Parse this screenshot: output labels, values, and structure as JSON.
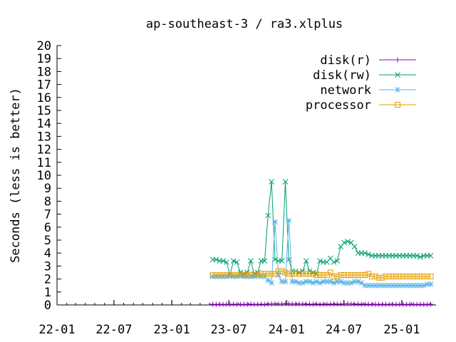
{
  "chart_data": {
    "type": "line",
    "title": "ap-southeast-3 / ra3.xlplus",
    "xlabel": "",
    "ylabel": "Seconds (less is better)",
    "xlim": [
      "2022-01-01",
      "2025-04-20"
    ],
    "ylim": [
      0,
      20
    ],
    "yticks": [
      0,
      1,
      2,
      3,
      4,
      5,
      6,
      7,
      8,
      9,
      10,
      11,
      12,
      13,
      14,
      15,
      16,
      17,
      18,
      19,
      20
    ],
    "xticks": [
      {
        "date": "2022-01-01",
        "label": "22-01"
      },
      {
        "date": "2022-07-01",
        "label": "22-07"
      },
      {
        "date": "2023-01-01",
        "label": "23-01"
      },
      {
        "date": "2023-07-01",
        "label": "23-07"
      },
      {
        "date": "2024-01-01",
        "label": "24-01"
      },
      {
        "date": "2024-07-01",
        "label": "24-07"
      },
      {
        "date": "2025-01-01",
        "label": "25-01"
      }
    ],
    "legend_position": "top-right",
    "grid": false,
    "series": [
      {
        "name": "disk(r)",
        "color": "#9400d3",
        "marker": "plus",
        "x": [
          "2023-05-11",
          "2023-05-22",
          "2023-06-02",
          "2023-06-13",
          "2023-06-24",
          "2023-07-05",
          "2023-07-16",
          "2023-07-27",
          "2023-08-07",
          "2023-08-18",
          "2023-08-29",
          "2023-09-09",
          "2023-09-20",
          "2023-10-01",
          "2023-10-12",
          "2023-10-23",
          "2023-11-03",
          "2023-11-14",
          "2023-11-25",
          "2023-12-06",
          "2023-12-17",
          "2023-12-28",
          "2024-01-08",
          "2024-01-19",
          "2024-01-30",
          "2024-02-10",
          "2024-02-21",
          "2024-03-03",
          "2024-03-14",
          "2024-03-25",
          "2024-04-05",
          "2024-04-16",
          "2024-04-27",
          "2024-05-08",
          "2024-05-19",
          "2024-05-30",
          "2024-06-10",
          "2024-06-21",
          "2024-07-02",
          "2024-07-13",
          "2024-07-24",
          "2024-08-04",
          "2024-08-15",
          "2024-08-26",
          "2024-09-06",
          "2024-09-17",
          "2024-09-28",
          "2024-10-09",
          "2024-10-20",
          "2024-10-31",
          "2024-11-11",
          "2024-11-22",
          "2024-12-03",
          "2024-12-14",
          "2024-12-25",
          "2025-01-05",
          "2025-01-16",
          "2025-01-27",
          "2025-02-07",
          "2025-02-18",
          "2025-03-01",
          "2025-03-12",
          "2025-03-23",
          "2025-04-03"
        ],
        "values": [
          0.05,
          0.05,
          0.05,
          0.05,
          0.05,
          0.05,
          0.06,
          0.05,
          0.05,
          0.05,
          0.05,
          0.06,
          0.05,
          0.05,
          0.06,
          0.05,
          0.08,
          0.08,
          0.09,
          0.08,
          0.08,
          0.1,
          0.09,
          0.08,
          0.09,
          0.08,
          0.08,
          0.07,
          0.06,
          0.06,
          0.07,
          0.06,
          0.06,
          0.06,
          0.07,
          0.07,
          0.07,
          0.07,
          0.08,
          0.09,
          0.08,
          0.07,
          0.07,
          0.06,
          0.06,
          0.06,
          0.05,
          0.05,
          0.05,
          0.05,
          0.05,
          0.05,
          0.05,
          0.05,
          0.05,
          0.05,
          0.05,
          0.05,
          0.05,
          0.05,
          0.05,
          0.05,
          0.05,
          0.05
        ]
      },
      {
        "name": "disk(rw)",
        "color": "#009e73",
        "marker": "cross",
        "x": [
          "2023-05-11",
          "2023-05-22",
          "2023-06-02",
          "2023-06-13",
          "2023-06-24",
          "2023-07-05",
          "2023-07-16",
          "2023-07-27",
          "2023-08-07",
          "2023-08-18",
          "2023-08-29",
          "2023-09-09",
          "2023-09-20",
          "2023-10-01",
          "2023-10-12",
          "2023-10-23",
          "2023-11-03",
          "2023-11-14",
          "2023-11-25",
          "2023-12-06",
          "2023-12-17",
          "2023-12-28",
          "2024-01-08",
          "2024-01-19",
          "2024-01-30",
          "2024-02-10",
          "2024-02-21",
          "2024-03-03",
          "2024-03-14",
          "2024-03-25",
          "2024-04-05",
          "2024-04-16",
          "2024-04-27",
          "2024-05-08",
          "2024-05-19",
          "2024-05-30",
          "2024-06-10",
          "2024-06-21",
          "2024-07-02",
          "2024-07-13",
          "2024-07-24",
          "2024-08-04",
          "2024-08-15",
          "2024-08-26",
          "2024-09-06",
          "2024-09-17",
          "2024-09-28",
          "2024-10-09",
          "2024-10-20",
          "2024-10-31",
          "2024-11-11",
          "2024-11-22",
          "2024-12-03",
          "2024-12-14",
          "2024-12-25",
          "2025-01-05",
          "2025-01-16",
          "2025-01-27",
          "2025-02-07",
          "2025-02-18",
          "2025-03-01",
          "2025-03-12",
          "2025-03-23",
          "2025-04-03"
        ],
        "values": [
          3.5,
          3.5,
          3.4,
          3.4,
          3.3,
          2.3,
          3.4,
          3.3,
          2.5,
          2.4,
          2.5,
          3.4,
          2.4,
          2.5,
          3.4,
          3.4,
          6.9,
          9.5,
          3.5,
          3.4,
          3.4,
          9.5,
          3.5,
          2.6,
          2.6,
          2.5,
          2.6,
          3.4,
          2.6,
          2.5,
          2.4,
          3.4,
          3.3,
          3.3,
          3.6,
          3.3,
          3.4,
          4.5,
          4.8,
          4.9,
          4.8,
          4.5,
          4.0,
          4.0,
          4.0,
          3.9,
          3.8,
          3.8,
          3.8,
          3.8,
          3.8,
          3.8,
          3.8,
          3.8,
          3.8,
          3.8,
          3.8,
          3.8,
          3.8,
          3.8,
          3.7,
          3.8,
          3.8,
          3.8
        ]
      },
      {
        "name": "network",
        "color": "#56b4e9",
        "marker": "star",
        "x": [
          "2023-05-11",
          "2023-05-22",
          "2023-06-02",
          "2023-06-13",
          "2023-06-24",
          "2023-07-05",
          "2023-07-16",
          "2023-07-27",
          "2023-08-07",
          "2023-08-18",
          "2023-08-29",
          "2023-09-09",
          "2023-09-20",
          "2023-10-01",
          "2023-10-12",
          "2023-10-23",
          "2023-11-03",
          "2023-11-14",
          "2023-11-25",
          "2023-12-06",
          "2023-12-17",
          "2023-12-28",
          "2024-01-08",
          "2024-01-19",
          "2024-01-30",
          "2024-02-10",
          "2024-02-21",
          "2024-03-03",
          "2024-03-14",
          "2024-03-25",
          "2024-04-05",
          "2024-04-16",
          "2024-04-27",
          "2024-05-08",
          "2024-05-19",
          "2024-05-30",
          "2024-06-10",
          "2024-06-21",
          "2024-07-02",
          "2024-07-13",
          "2024-07-24",
          "2024-08-04",
          "2024-08-15",
          "2024-08-26",
          "2024-09-06",
          "2024-09-17",
          "2024-09-28",
          "2024-10-09",
          "2024-10-20",
          "2024-10-31",
          "2024-11-11",
          "2024-11-22",
          "2024-12-03",
          "2024-12-14",
          "2024-12-25",
          "2025-01-05",
          "2025-01-16",
          "2025-01-27",
          "2025-02-07",
          "2025-02-18",
          "2025-03-01",
          "2025-03-12",
          "2025-03-23",
          "2025-04-03"
        ],
        "values": [
          2.2,
          2.2,
          2.2,
          2.2,
          2.2,
          2.3,
          2.2,
          2.2,
          2.3,
          2.2,
          2.2,
          2.2,
          2.2,
          2.3,
          2.2,
          2.2,
          1.9,
          1.7,
          6.4,
          2.3,
          1.8,
          1.8,
          6.5,
          1.8,
          1.8,
          1.7,
          1.7,
          1.8,
          1.8,
          1.7,
          1.8,
          1.7,
          1.8,
          1.8,
          1.8,
          1.7,
          1.8,
          1.8,
          1.7,
          1.7,
          1.7,
          1.8,
          1.8,
          1.7,
          1.5,
          1.5,
          1.5,
          1.5,
          1.5,
          1.5,
          1.5,
          1.5,
          1.5,
          1.5,
          1.5,
          1.5,
          1.5,
          1.5,
          1.5,
          1.5,
          1.5,
          1.5,
          1.6,
          1.6
        ]
      },
      {
        "name": "processor",
        "color": "#e69f00",
        "marker": "square",
        "x": [
          "2023-05-11",
          "2023-05-22",
          "2023-06-02",
          "2023-06-13",
          "2023-06-24",
          "2023-07-05",
          "2023-07-16",
          "2023-07-27",
          "2023-08-07",
          "2023-08-18",
          "2023-08-29",
          "2023-09-09",
          "2023-09-20",
          "2023-10-01",
          "2023-10-12",
          "2023-10-23",
          "2023-11-03",
          "2023-11-14",
          "2023-11-25",
          "2023-12-06",
          "2023-12-17",
          "2023-12-28",
          "2024-01-08",
          "2024-01-19",
          "2024-01-30",
          "2024-02-10",
          "2024-02-21",
          "2024-03-03",
          "2024-03-14",
          "2024-03-25",
          "2024-04-05",
          "2024-04-16",
          "2024-04-27",
          "2024-05-08",
          "2024-05-19",
          "2024-05-30",
          "2024-06-10",
          "2024-06-21",
          "2024-07-02",
          "2024-07-13",
          "2024-07-24",
          "2024-08-04",
          "2024-08-15",
          "2024-08-26",
          "2024-09-06",
          "2024-09-17",
          "2024-09-28",
          "2024-10-09",
          "2024-10-20",
          "2024-10-31",
          "2024-11-11",
          "2024-11-22",
          "2024-12-03",
          "2024-12-14",
          "2024-12-25",
          "2025-01-05",
          "2025-01-16",
          "2025-01-27",
          "2025-02-07",
          "2025-02-18",
          "2025-03-01",
          "2025-03-12",
          "2025-03-23",
          "2025-04-03"
        ],
        "values": [
          2.3,
          2.3,
          2.3,
          2.3,
          2.3,
          2.3,
          2.3,
          2.3,
          2.3,
          2.3,
          2.3,
          2.3,
          2.3,
          2.3,
          2.4,
          2.4,
          2.4,
          2.4,
          2.4,
          2.6,
          2.6,
          2.5,
          2.4,
          2.4,
          2.4,
          2.4,
          2.4,
          2.4,
          2.4,
          2.4,
          2.3,
          2.3,
          2.3,
          2.3,
          2.5,
          2.2,
          2.2,
          2.3,
          2.3,
          2.3,
          2.3,
          2.3,
          2.3,
          2.3,
          2.3,
          2.4,
          2.2,
          2.2,
          2.1,
          2.1,
          2.2,
          2.2,
          2.2,
          2.2,
          2.2,
          2.2,
          2.2,
          2.2,
          2.2,
          2.2,
          2.2,
          2.2,
          2.2,
          2.2
        ]
      }
    ]
  }
}
